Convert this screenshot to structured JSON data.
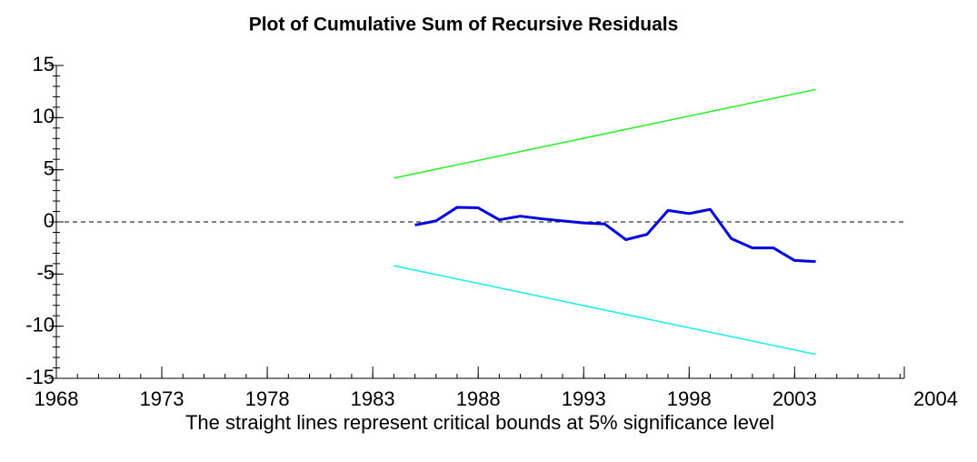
{
  "chart_data": {
    "type": "line",
    "title": "Plot of Cumulative Sum of Recursive Residuals",
    "note": "The straight lines represent critical bounds at 5% significance level",
    "xlim": [
      1968,
      2008.2
    ],
    "xticks": [
      1968,
      1973,
      1978,
      1983,
      1988,
      1993,
      1998,
      2003
    ],
    "x_axis_end_label": "2004",
    "x_minor_tick_step": 1,
    "ylim": [
      -15,
      15
    ],
    "yticks": [
      -15,
      -10,
      -5,
      0,
      5,
      10,
      15
    ],
    "y_minor_tick_step": 1,
    "reference_line": 0,
    "series": [
      {
        "color": "#0000e0",
        "x": [
          1985,
          1986,
          1987,
          1988,
          1989,
          1990,
          1991,
          1992,
          1993,
          1994,
          1995,
          1996,
          1997,
          1998,
          1999,
          2000,
          2001,
          2002,
          2003,
          2004
        ],
        "values": [
          -0.3,
          0.1,
          1.4,
          1.35,
          0.2,
          0.55,
          0.3,
          0.1,
          -0.1,
          -0.2,
          -1.7,
          -1.2,
          1.1,
          0.8,
          1.2,
          -1.6,
          -2.5,
          -2.5,
          -3.7,
          -3.8
        ]
      },
      {
        "color": "#33ee33",
        "x": [
          1984,
          2004
        ],
        "values": [
          4.2,
          12.7
        ]
      },
      {
        "color": "#22eeee",
        "x": [
          1984,
          2004
        ],
        "values": [
          -4.2,
          -12.7
        ]
      }
    ]
  }
}
